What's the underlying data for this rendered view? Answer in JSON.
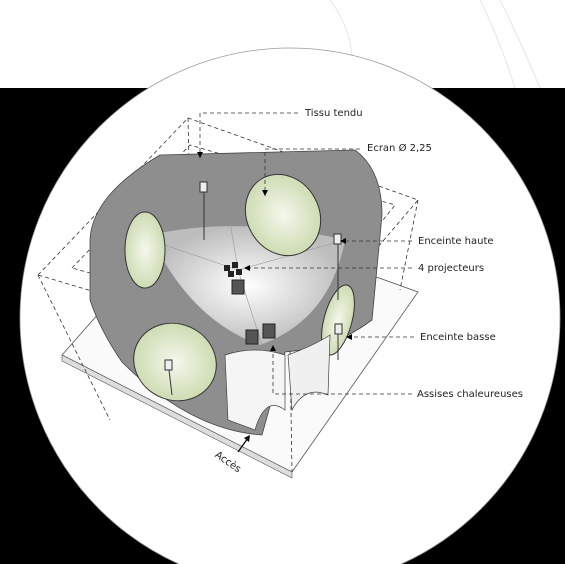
{
  "labels": {
    "tissu": "Tissu tendu",
    "ecran": "Ecran Ø 2,25",
    "enceinte_haute": "Enceinte haute",
    "projecteurs": "4 projecteurs",
    "enceinte_basse": "Enceinte basse",
    "assises": "Assises chaleureuses",
    "acces": "Accès"
  }
}
